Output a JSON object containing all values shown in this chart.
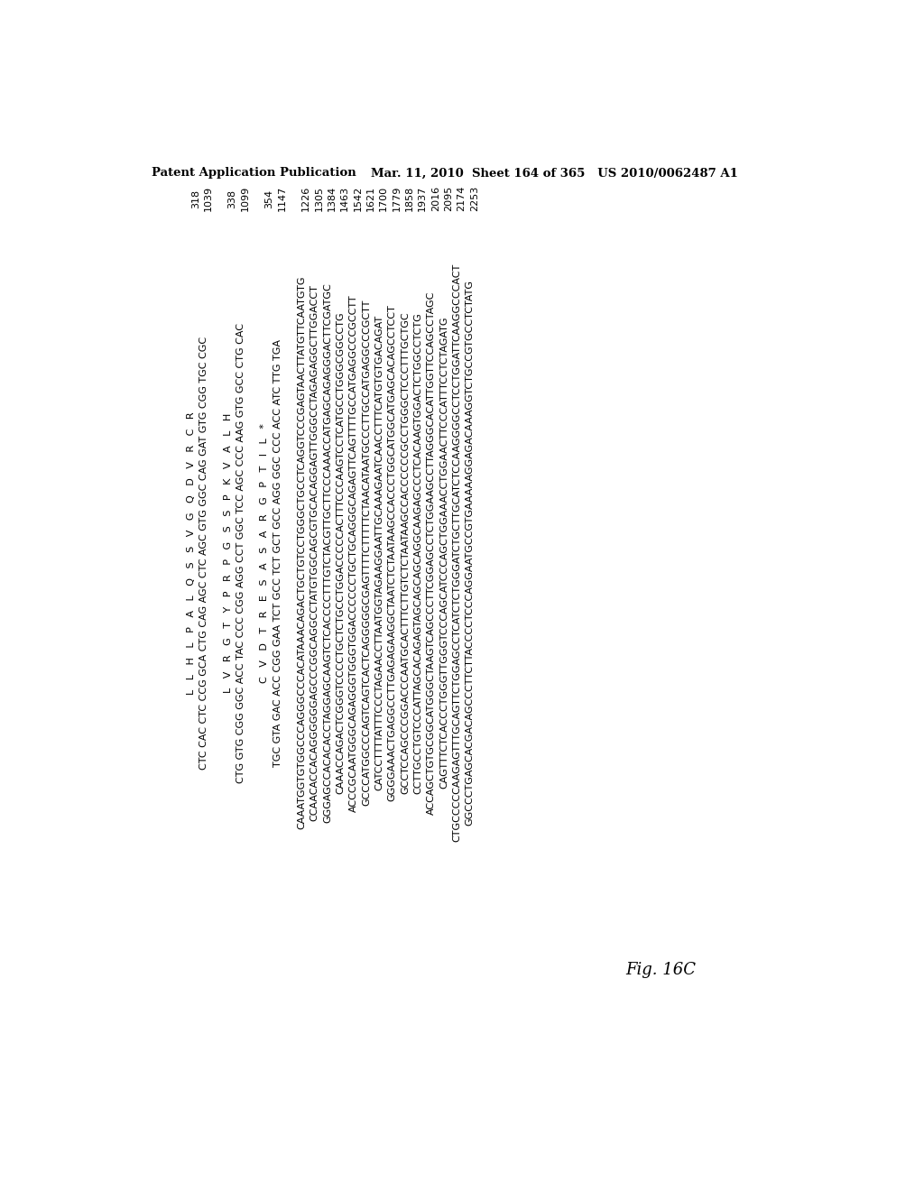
{
  "header_left": "Patent Application Publication",
  "header_right": "Mar. 11, 2010  Sheet 164 of 365   US 2010/0062487 A1",
  "figure_label": "Fig. 16C",
  "background_color": "#ffffff",
  "text_color": "#000000",
  "line_groups": [
    {
      "lines": [
        "L   L   H   L   P   A   L   Q   S   S   V   G   Q   D   V   R   C   R",
        "CTC CAC CTC CCG GCA CTG CAG AGC CTC AGC GTG GGC CAG GAT GTG CGG TGC CGC"
      ],
      "nums": [
        "318",
        "1039"
      ],
      "gap_after": true
    },
    {
      "lines": [
        "L   V   R   G   T   Y   P   R   P   G   S   S   P   K   V   A   L   H",
        "CTG GTG CGG GGC ACC TAC CCC CGG AGG CCT GGC TCC AGC CCC AAG GTG GCC CTG CAC"
      ],
      "nums": [
        "338",
        "1099"
      ],
      "gap_after": true
    },
    {
      "lines": [
        "C   V   D   T   R   E   S   A   S   A   R   G   P   T   I   L   *",
        "TGC GTA GAC ACC CGG GAA TCT GCC TCT GCT GCC AGG GGC CCC ACC ATC TTG TGA"
      ],
      "nums": [
        "354",
        "1147"
      ],
      "gap_after": true
    }
  ],
  "dna_lines": [
    {
      "seq": "CAAATGGTGTGGCCCAGGGCCCACATAAACAGACTGCTGTCCTGGGCTGCCTCAGGTCCCGAGTAACTTATGTTCAATGTG",
      "num": "1226"
    },
    {
      "seq": "CCAACACCACAGGGGGGAGCCCGGCAGGCCTATGTGGCAGCGTGCACAGGAGTTGGGCCTAGAGAGGCTTGGACCT",
      "num": "1305"
    },
    {
      "seq": "GGGAGCCACACACCTAGGAGCAAGTCTCACCCCTTTGTCTACGTTGCTTCCCAAACCATGAGCAGAGGGACTTCGATGC",
      "num": "1384"
    },
    {
      "seq": "CAAACCAGACTCGGGTCCCCTGCTCTGCCTGGACCCCCACTTTCCCAAGTCCTCATGCCTGGGCGGCCTG",
      "num": "1463"
    },
    {
      "seq": "ACCCGCAATGGGCAGAGGGTGGGTGGACCCCCCTGCTGCAGGGCAGAGTTCAGTTTTGCCATGAGGCCCGCCTT",
      "num": "1542"
    },
    {
      "seq": "GCCCATGGCCCAGTCAGTCACTCAGGGGGCGAGTTTTCTTTTTCTAACATAATGCCCTTGCCATGAGGCCCGCTT",
      "num": "1621"
    },
    {
      "seq": "CATCCTTTTATTTCCCTAGAACCTTAATGGTAGAAGGAATTGCAAAGAATCAACCTTTCATGTGTGACAGAT",
      "num": "1700"
    },
    {
      "seq": "GGGGAAACTGAGGCCTTGAGAGAAGGCTAATCTCTAATAAGCCACCCTGGCATGGCATGAGCACAGCCTCCT",
      "num": "1779"
    },
    {
      "seq": "GCCTCCAGCCCGGACCCAATGCACTTTCTTGTCTCTAATAAGCCACCCCCCGCCTGGGCTCCCTTTGCTGC",
      "num": "1858"
    },
    {
      "seq": "CCTTGCCTGTCCCATTAGCACAGAGTAGCAGCAGCAGGCAAGAGCCCTCACAAGTGGACTCTGGCCTCTG",
      "num": "1937"
    },
    {
      "seq": "ACCAGCTGTGCGGCATGGGCTAAGTCAGCCCTTCGGAGCCTCTGGAAGCCTTAGGGCACATTGGTTCCAGCCTAGC",
      "num": "2016"
    },
    {
      "seq": "CAGTTTCTCACCCTGGGTTGGGTCCCAGCATCCCAGCTGGAAACCTGGAACTTCCCATTTCCTCTAGATG",
      "num": "2095"
    },
    {
      "seq": "CTGCCCCCAAGAGTTTGCAGTTCTGGAGCCTCATCTCTGGGATCTGCTTGCATCTCCAAGGGGCCTCCTGGATTCAAGGCCCACT",
      "num": "2174"
    },
    {
      "seq": "GGCCCTGAGCACGACAGCCCTTCTTACCCCTCCCAGGAATGCCGTGAAAAAGGAGACAAAGGTCTGCCGTGCCTCTATG",
      "num": "2253"
    }
  ]
}
